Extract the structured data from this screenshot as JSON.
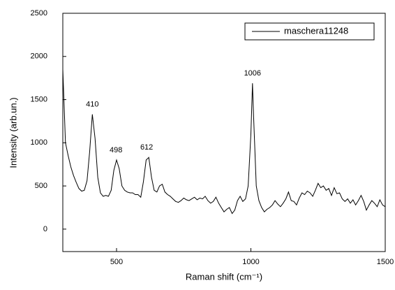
{
  "chart_data": {
    "type": "line",
    "x_label": "Raman shift (cm⁻¹)",
    "y_label": "Intensity (arb.un.)",
    "x": [
      300,
      310,
      320,
      330,
      340,
      350,
      360,
      370,
      380,
      390,
      400,
      410,
      420,
      430,
      440,
      450,
      460,
      470,
      480,
      490,
      500,
      510,
      520,
      530,
      540,
      550,
      560,
      570,
      580,
      590,
      600,
      610,
      620,
      630,
      640,
      650,
      660,
      670,
      680,
      690,
      700,
      710,
      720,
      730,
      740,
      750,
      760,
      770,
      780,
      790,
      800,
      810,
      820,
      830,
      840,
      850,
      860,
      870,
      880,
      890,
      900,
      910,
      920,
      930,
      940,
      950,
      960,
      970,
      980,
      990,
      1000,
      1006,
      1010,
      1020,
      1030,
      1040,
      1050,
      1060,
      1070,
      1080,
      1090,
      1100,
      1110,
      1120,
      1130,
      1140,
      1150,
      1160,
      1170,
      1180,
      1190,
      1200,
      1210,
      1220,
      1230,
      1240,
      1250,
      1260,
      1270,
      1280,
      1290,
      1300,
      1310,
      1320,
      1330,
      1340,
      1350,
      1360,
      1370,
      1380,
      1390,
      1400,
      1410,
      1420,
      1430,
      1440,
      1450,
      1460,
      1470,
      1480,
      1490,
      1500
    ],
    "series": [
      {
        "name": "maschera11248",
        "color": "#000000",
        "values": [
          1850,
          1000,
          850,
          720,
          620,
          540,
          470,
          440,
          450,
          560,
          900,
          1330,
          1050,
          600,
          420,
          380,
          390,
          380,
          450,
          680,
          800,
          700,
          500,
          450,
          430,
          420,
          420,
          400,
          400,
          370,
          550,
          800,
          830,
          600,
          450,
          430,
          500,
          520,
          430,
          400,
          380,
          350,
          320,
          310,
          330,
          360,
          340,
          330,
          350,
          370,
          340,
          360,
          350,
          380,
          330,
          300,
          320,
          370,
          300,
          250,
          200,
          230,
          250,
          180,
          220,
          330,
          380,
          320,
          350,
          500,
          1100,
          1690,
          1300,
          500,
          330,
          250,
          200,
          230,
          250,
          280,
          330,
          290,
          260,
          300,
          350,
          430,
          330,
          320,
          280,
          360,
          420,
          400,
          440,
          420,
          380,
          450,
          530,
          480,
          500,
          450,
          470,
          390,
          480,
          410,
          420,
          350,
          320,
          350,
          300,
          340,
          280,
          330,
          390,
          320,
          220,
          280,
          330,
          300,
          260,
          340,
          280,
          260
        ]
      }
    ],
    "annotations": [
      {
        "text": "410",
        "x": 410
      },
      {
        "text": "498",
        "x": 498
      },
      {
        "text": "612",
        "x": 612
      },
      {
        "text": "1006",
        "x": 1006
      }
    ],
    "xlim": [
      300,
      1500
    ],
    "ylim": [
      -260,
      2500
    ],
    "xticks": [
      500,
      1000,
      1500
    ],
    "yticks": [
      0,
      500,
      1000,
      1500,
      2000,
      2500
    ],
    "legend": "upper right"
  }
}
